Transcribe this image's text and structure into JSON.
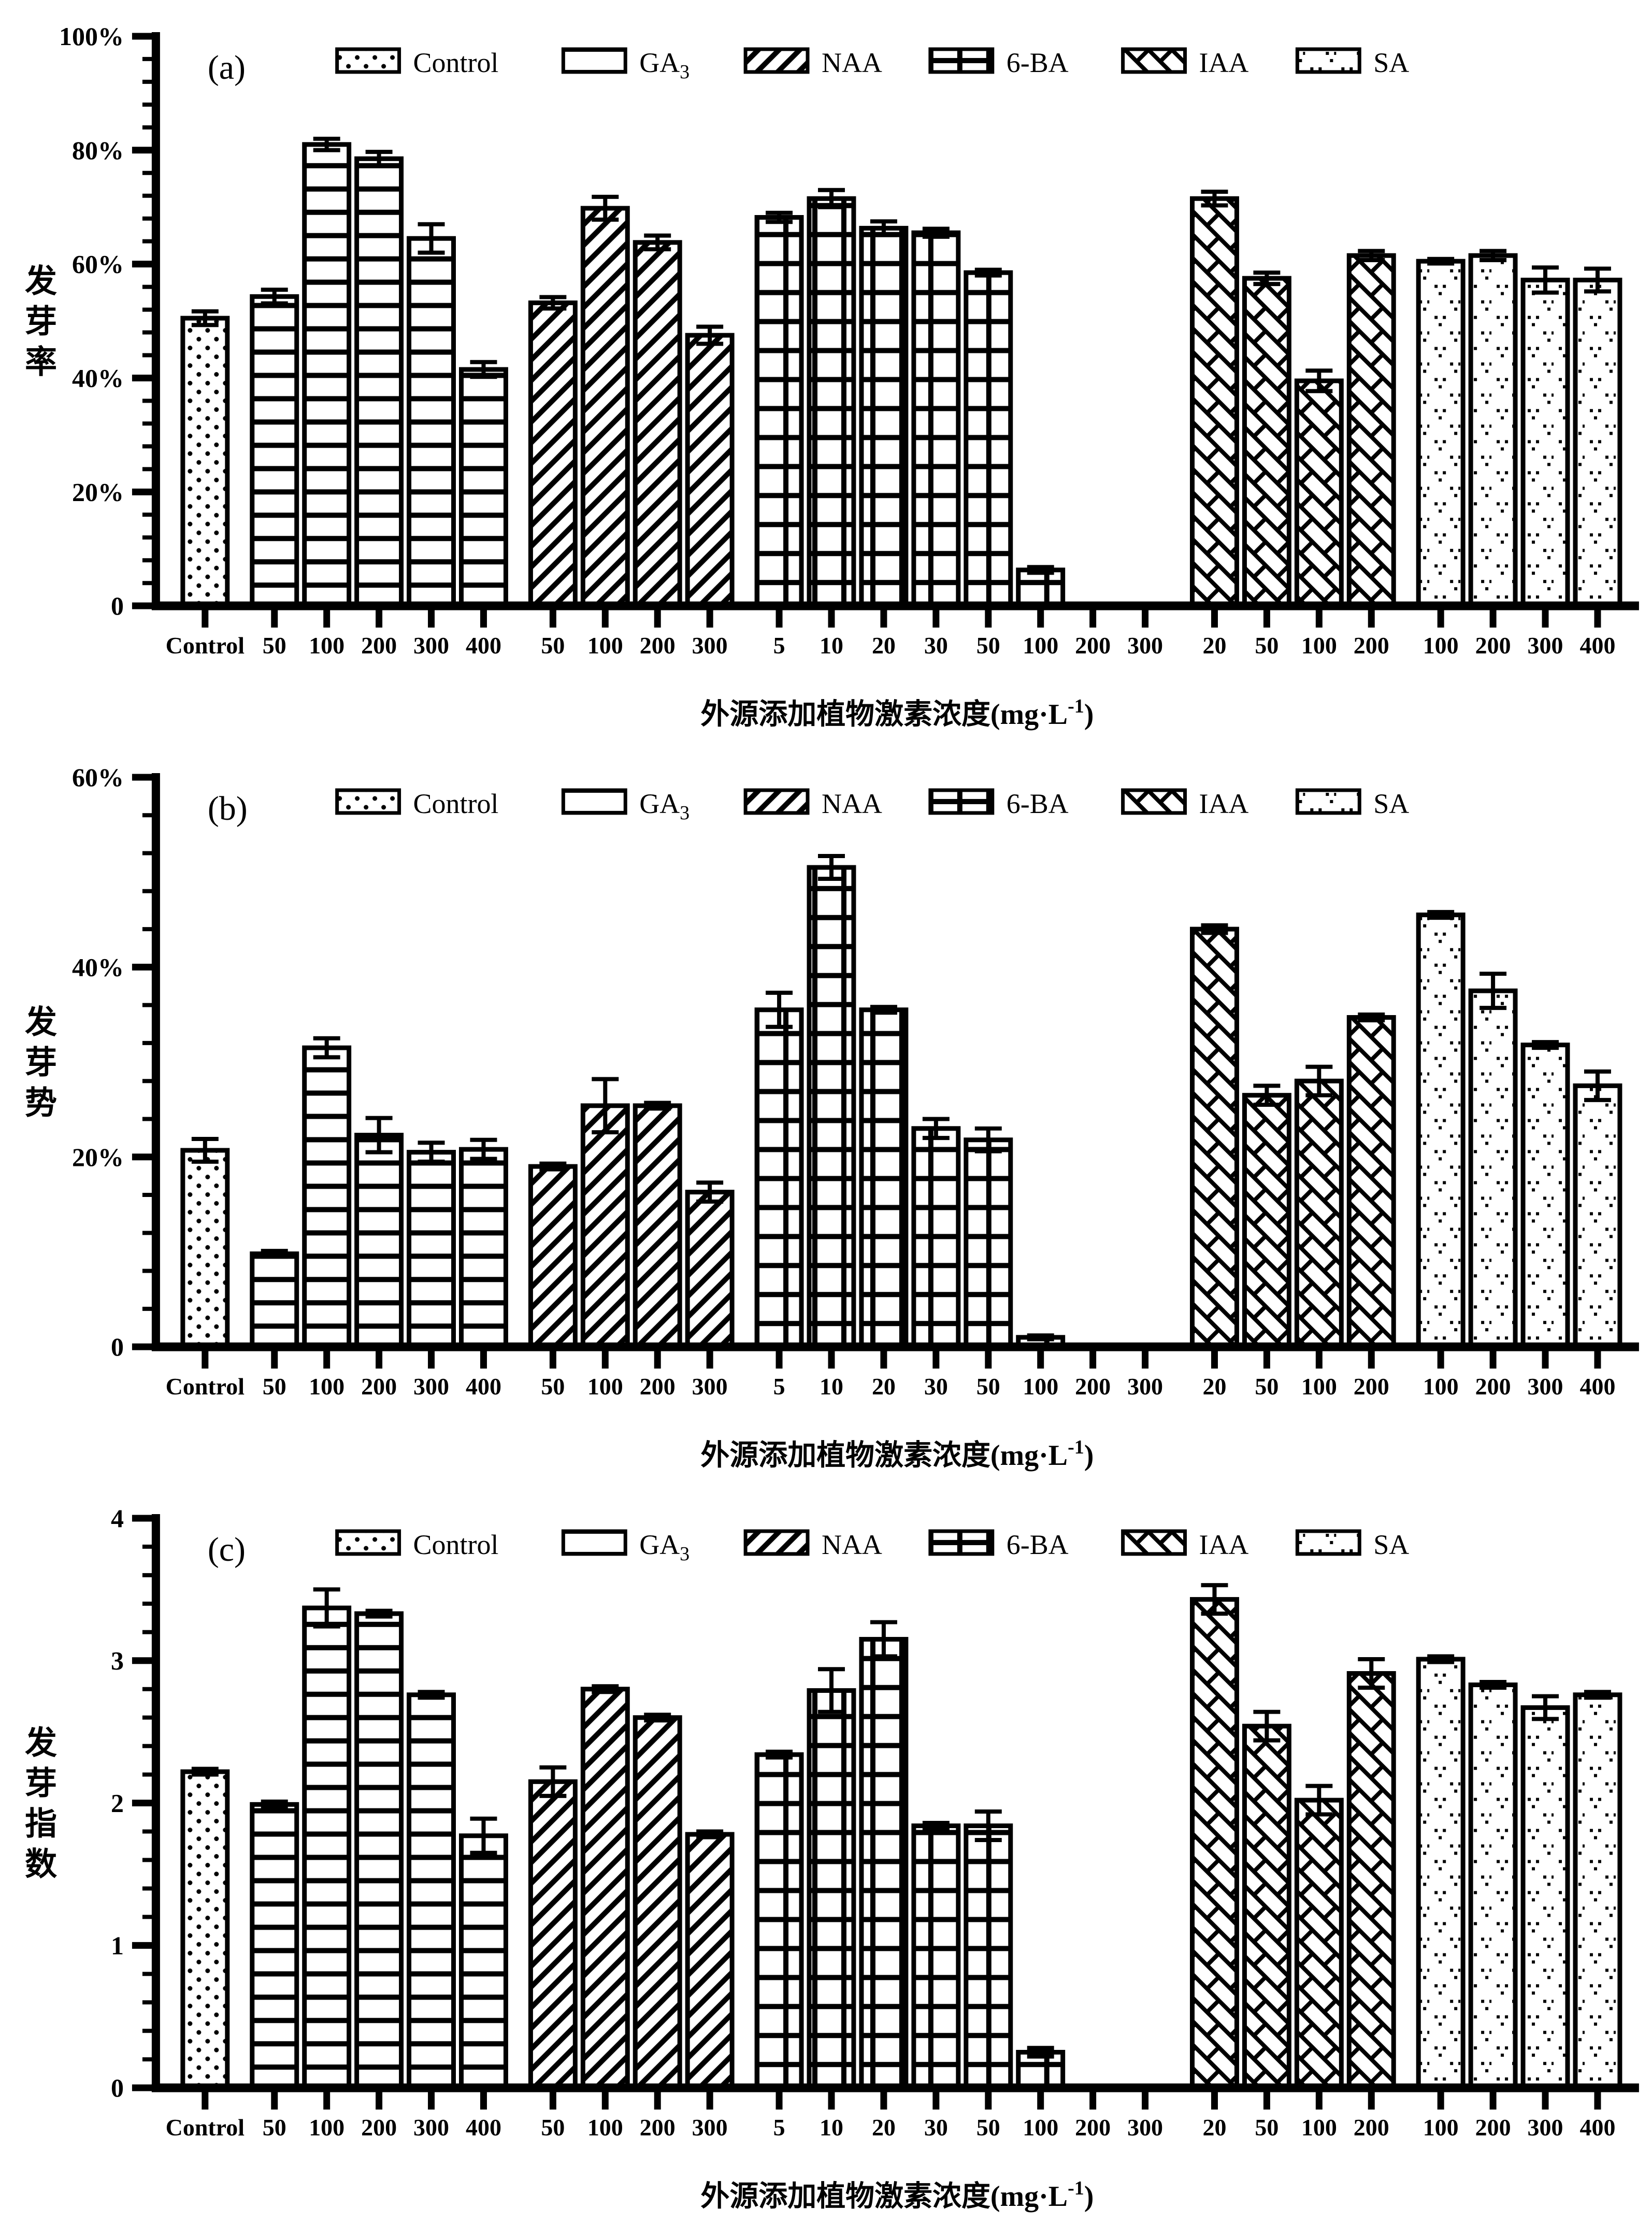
{
  "figure": {
    "x_axis_title": {
      "main": "外源添加植物激素浓度(mg·L",
      "sup": "-1",
      "close": ")"
    },
    "ink_color": "#000000",
    "background_color": "#ffffff",
    "legend": [
      {
        "label": "Control",
        "pattern": "dots"
      },
      {
        "label": "GA",
        "sub": "3",
        "pattern": "hlines"
      },
      {
        "label": "NAA",
        "pattern": "diag"
      },
      {
        "label": "6-BA",
        "pattern": "grid"
      },
      {
        "label": "IAA",
        "pattern": "brick"
      },
      {
        "label": "SA",
        "pattern": "vdots"
      }
    ]
  },
  "chart_data": [
    {
      "type": "bar",
      "panel_label": "(a)",
      "ylabel": "发芽率",
      "ymax": 100,
      "y_major_step": 20,
      "y_minor_step": 4,
      "y_tick_labels": [
        "0",
        "20%",
        "40%",
        "60%",
        "80%",
        "100%"
      ],
      "legend_position": "top",
      "grid": false,
      "groups": [
        {
          "name": "Control",
          "pattern": "dots",
          "bars": [
            {
              "label": "Control",
              "value": 50.5,
              "err": 1.2
            }
          ]
        },
        {
          "name": "GA3",
          "pattern": "hlines",
          "bars": [
            {
              "label": "50",
              "value": 54.3,
              "err": 1.2
            },
            {
              "label": "100",
              "value": 81.0,
              "err": 1.0
            },
            {
              "label": "200",
              "value": 78.5,
              "err": 1.2
            },
            {
              "label": "300",
              "value": 64.5,
              "err": 2.5
            },
            {
              "label": "400",
              "value": 41.5,
              "err": 1.3
            }
          ]
        },
        {
          "name": "NAA",
          "pattern": "diag",
          "bars": [
            {
              "label": "50",
              "value": 53.2,
              "err": 1.0
            },
            {
              "label": "100",
              "value": 69.8,
              "err": 2.0
            },
            {
              "label": "200",
              "value": 63.8,
              "err": 1.2
            },
            {
              "label": "300",
              "value": 47.5,
              "err": 1.5
            }
          ]
        },
        {
          "name": "6-BA",
          "pattern": "grid",
          "bars": [
            {
              "label": "5",
              "value": 68.2,
              "err": 0.8
            },
            {
              "label": "10",
              "value": 71.5,
              "err": 1.5
            },
            {
              "label": "20",
              "value": 66.3,
              "err": 1.2
            },
            {
              "label": "30",
              "value": 65.5,
              "err": 0.7
            },
            {
              "label": "50",
              "value": 58.5,
              "err": 0.5
            },
            {
              "label": "100",
              "value": 6.3,
              "err": 0.5
            },
            {
              "label": "200",
              "value": 0,
              "err": 0
            },
            {
              "label": "300",
              "value": 0,
              "err": 0
            }
          ]
        },
        {
          "name": "IAA",
          "pattern": "brick",
          "bars": [
            {
              "label": "20",
              "value": 71.5,
              "err": 1.2
            },
            {
              "label": "50",
              "value": 57.5,
              "err": 1.0
            },
            {
              "label": "100",
              "value": 39.5,
              "err": 1.8
            },
            {
              "label": "200",
              "value": 61.5,
              "err": 0.8
            }
          ]
        },
        {
          "name": "SA",
          "pattern": "vdots",
          "bars": [
            {
              "label": "100",
              "value": 60.5,
              "err": 0.4
            },
            {
              "label": "200",
              "value": 61.5,
              "err": 0.8
            },
            {
              "label": "300",
              "value": 57.2,
              "err": 2.2
            },
            {
              "label": "400",
              "value": 57.2,
              "err": 2.0
            }
          ]
        }
      ]
    },
    {
      "type": "bar",
      "panel_label": "(b)",
      "ylabel": "发芽势",
      "ymax": 60,
      "y_major_step": 20,
      "y_minor_step": 4,
      "y_tick_labels": [
        "0",
        "20%",
        "40%",
        "60%"
      ],
      "legend_position": "top",
      "grid": false,
      "groups": [
        {
          "name": "Control",
          "pattern": "dots",
          "bars": [
            {
              "label": "Control",
              "value": 20.7,
              "err": 1.2
            }
          ]
        },
        {
          "name": "GA3",
          "pattern": "hlines",
          "bars": [
            {
              "label": "50",
              "value": 9.8,
              "err": 0.3
            },
            {
              "label": "100",
              "value": 31.5,
              "err": 1.0
            },
            {
              "label": "200",
              "value": 22.3,
              "err": 1.8
            },
            {
              "label": "300",
              "value": 20.5,
              "err": 1.0
            },
            {
              "label": "400",
              "value": 20.8,
              "err": 1.0
            }
          ]
        },
        {
          "name": "NAA",
          "pattern": "diag",
          "bars": [
            {
              "label": "50",
              "value": 19.0,
              "err": 0.3
            },
            {
              "label": "100",
              "value": 25.4,
              "err": 2.8
            },
            {
              "label": "200",
              "value": 25.4,
              "err": 0.3
            },
            {
              "label": "300",
              "value": 16.3,
              "err": 1.0
            }
          ]
        },
        {
          "name": "6-BA",
          "pattern": "grid",
          "bars": [
            {
              "label": "5",
              "value": 35.5,
              "err": 1.8
            },
            {
              "label": "10",
              "value": 50.5,
              "err": 1.2
            },
            {
              "label": "20",
              "value": 35.5,
              "err": 0.3
            },
            {
              "label": "30",
              "value": 23.0,
              "err": 1.0
            },
            {
              "label": "50",
              "value": 21.8,
              "err": 1.2
            },
            {
              "label": "100",
              "value": 1.0,
              "err": 0.2
            },
            {
              "label": "200",
              "value": 0,
              "err": 0
            },
            {
              "label": "300",
              "value": 0,
              "err": 0
            }
          ]
        },
        {
          "name": "IAA",
          "pattern": "brick",
          "bars": [
            {
              "label": "20",
              "value": 44.0,
              "err": 0.4
            },
            {
              "label": "50",
              "value": 26.5,
              "err": 1.0
            },
            {
              "label": "100",
              "value": 28.0,
              "err": 1.5
            },
            {
              "label": "200",
              "value": 34.7,
              "err": 0.3
            }
          ]
        },
        {
          "name": "SA",
          "pattern": "vdots",
          "bars": [
            {
              "label": "100",
              "value": 45.5,
              "err": 0.3
            },
            {
              "label": "200",
              "value": 37.5,
              "err": 1.8
            },
            {
              "label": "300",
              "value": 31.8,
              "err": 0.3
            },
            {
              "label": "400",
              "value": 27.5,
              "err": 1.5
            }
          ]
        }
      ]
    },
    {
      "type": "bar",
      "panel_label": "(c)",
      "ylabel": "发芽指数",
      "ymax": 4,
      "y_major_step": 1,
      "y_minor_step": 0.2,
      "y_tick_labels": [
        "0",
        "1",
        "2",
        "3",
        "4"
      ],
      "legend_position": "top",
      "grid": false,
      "groups": [
        {
          "name": "Control",
          "pattern": "dots",
          "bars": [
            {
              "label": "Control",
              "value": 2.22,
              "err": 0.02
            }
          ]
        },
        {
          "name": "GA3",
          "pattern": "hlines",
          "bars": [
            {
              "label": "50",
              "value": 1.99,
              "err": 0.02
            },
            {
              "label": "100",
              "value": 3.37,
              "err": 0.13
            },
            {
              "label": "200",
              "value": 3.33,
              "err": 0.02
            },
            {
              "label": "300",
              "value": 2.76,
              "err": 0.02
            },
            {
              "label": "400",
              "value": 1.77,
              "err": 0.12
            }
          ]
        },
        {
          "name": "NAA",
          "pattern": "diag",
          "bars": [
            {
              "label": "50",
              "value": 2.15,
              "err": 0.1
            },
            {
              "label": "100",
              "value": 2.8,
              "err": 0.02
            },
            {
              "label": "200",
              "value": 2.6,
              "err": 0.02
            },
            {
              "label": "300",
              "value": 1.78,
              "err": 0.02
            }
          ]
        },
        {
          "name": "6-BA",
          "pattern": "grid",
          "bars": [
            {
              "label": "5",
              "value": 2.34,
              "err": 0.02
            },
            {
              "label": "10",
              "value": 2.79,
              "err": 0.15
            },
            {
              "label": "20",
              "value": 3.15,
              "err": 0.12
            },
            {
              "label": "30",
              "value": 1.84,
              "err": 0.02
            },
            {
              "label": "50",
              "value": 1.84,
              "err": 0.1
            },
            {
              "label": "100",
              "value": 0.25,
              "err": 0.03
            },
            {
              "label": "200",
              "value": 0,
              "err": 0
            },
            {
              "label": "300",
              "value": 0,
              "err": 0
            }
          ]
        },
        {
          "name": "IAA",
          "pattern": "brick",
          "bars": [
            {
              "label": "20",
              "value": 3.43,
              "err": 0.1
            },
            {
              "label": "50",
              "value": 2.54,
              "err": 0.1
            },
            {
              "label": "100",
              "value": 2.02,
              "err": 0.1
            },
            {
              "label": "200",
              "value": 2.91,
              "err": 0.1
            }
          ]
        },
        {
          "name": "SA",
          "pattern": "vdots",
          "bars": [
            {
              "label": "100",
              "value": 3.01,
              "err": 0.02
            },
            {
              "label": "200",
              "value": 2.83,
              "err": 0.02
            },
            {
              "label": "300",
              "value": 2.67,
              "err": 0.08
            },
            {
              "label": "400",
              "value": 2.76,
              "err": 0.02
            }
          ]
        }
      ]
    }
  ]
}
